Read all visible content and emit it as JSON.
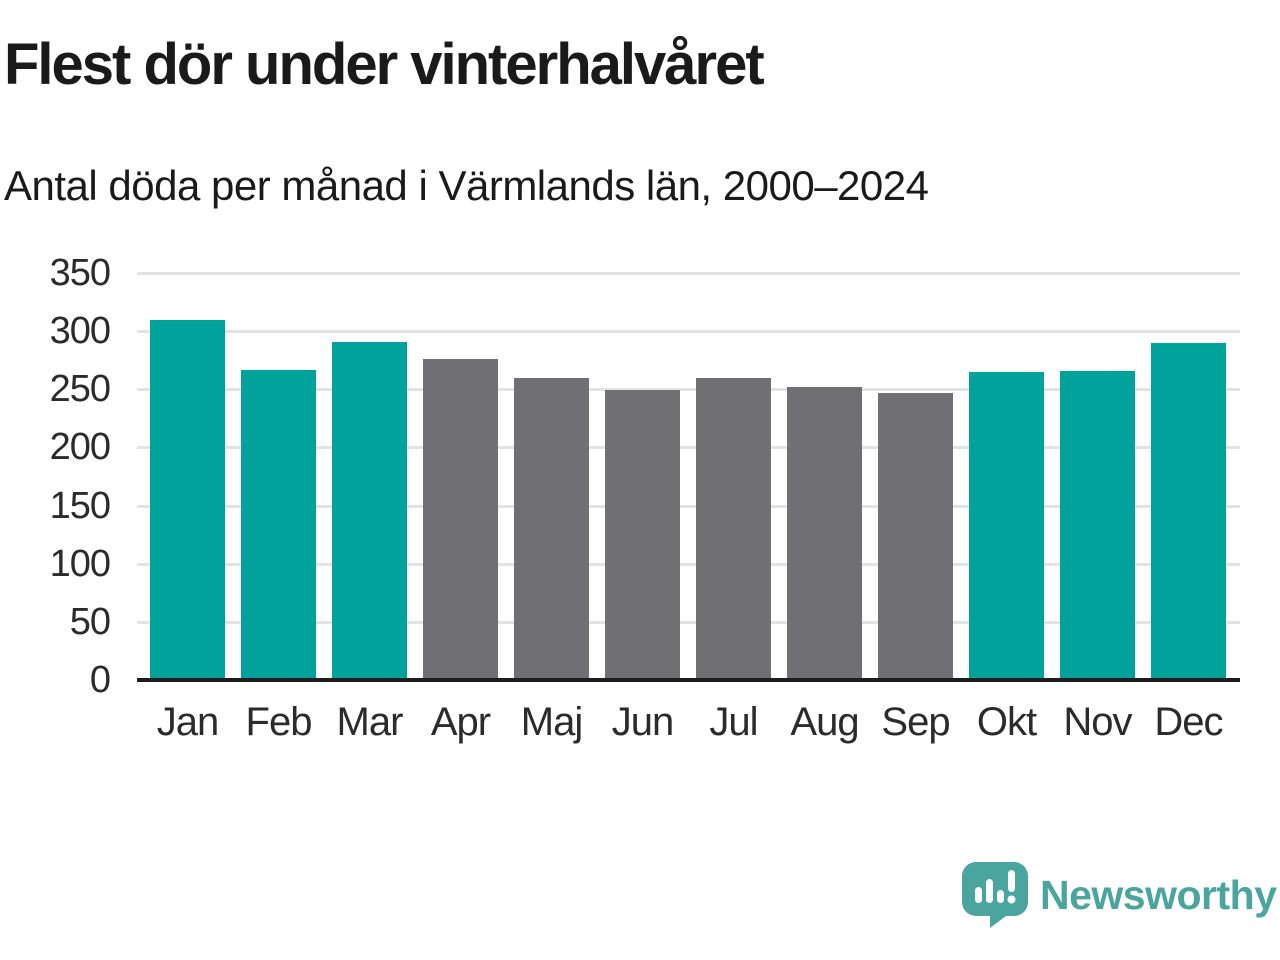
{
  "header": {
    "title": "Flest dör under vinterhalvåret",
    "subtitle": "Antal döda per månad i Värmlands län, 2000–2024"
  },
  "chart_data": {
    "type": "bar",
    "title": "Flest dör under vinterhalvåret",
    "subtitle": "Antal döda per månad i Värmlands län, 2000–2024",
    "categories": [
      "Jan",
      "Feb",
      "Mar",
      "Apr",
      "Maj",
      "Jun",
      "Jul",
      "Aug",
      "Sep",
      "Okt",
      "Nov",
      "Dec"
    ],
    "values": [
      310,
      267,
      291,
      276,
      260,
      249,
      260,
      252,
      247,
      265,
      266,
      290
    ],
    "bar_colors": [
      "#00a39b",
      "#00a39b",
      "#00a39b",
      "#6f6f74",
      "#6f6f74",
      "#6f6f74",
      "#6f6f74",
      "#6f6f74",
      "#6f6f74",
      "#00a39b",
      "#00a39b",
      "#00a39b"
    ],
    "highlighted_months": [
      "Jan",
      "Feb",
      "Mar",
      "Okt",
      "Nov",
      "Dec"
    ],
    "xlabel": "",
    "ylabel": "",
    "ylim": [
      0,
      350
    ],
    "yticks": [
      0,
      50,
      100,
      150,
      200,
      250,
      300,
      350
    ],
    "grid": true,
    "legend": "none"
  },
  "colors": {
    "highlight": "#00a39b",
    "muted": "#6f6f74",
    "grid": "#e3e3e3",
    "axis": "#1d1d1d",
    "text": "#1a1a1a",
    "logo": "#4aa59e"
  },
  "footer": {
    "brand": "Newsworthy",
    "logo_icon": "bar-chart-speech-bubble-icon"
  }
}
